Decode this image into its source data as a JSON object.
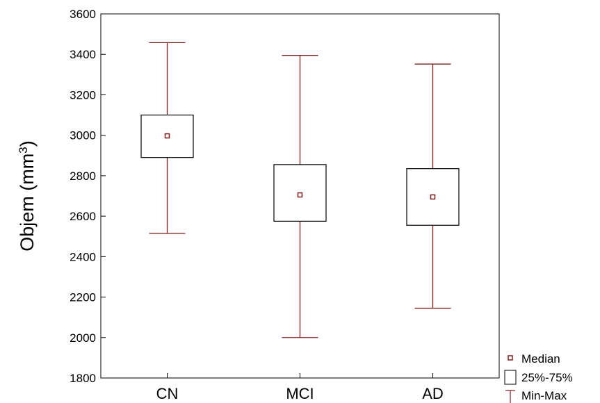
{
  "chart_data": {
    "type": "box",
    "ylabel_text": "Objem (mm",
    "ylabel_sup": "3",
    "ylabel_close": ")",
    "ylim": [
      1800,
      3600
    ],
    "y_ticks": [
      1800,
      2000,
      2200,
      2400,
      2600,
      2800,
      3000,
      3200,
      3400,
      3600
    ],
    "categories": [
      "CN",
      "MCI",
      "AD"
    ],
    "series": [
      {
        "category": "CN",
        "min": 2515,
        "q1": 2890,
        "median": 2997,
        "q3": 3100,
        "max": 3458
      },
      {
        "category": "MCI",
        "min": 2000,
        "q1": 2575,
        "median": 2705,
        "q3": 2855,
        "max": 3395
      },
      {
        "category": "AD",
        "min": 2145,
        "q1": 2555,
        "median": 2695,
        "q3": 2835,
        "max": 3352
      }
    ],
    "legend": [
      "Median",
      "25%-75%",
      "Min-Max"
    ],
    "legend_position": "bottom-right",
    "grid": false,
    "color": "#7a1a1a"
  }
}
